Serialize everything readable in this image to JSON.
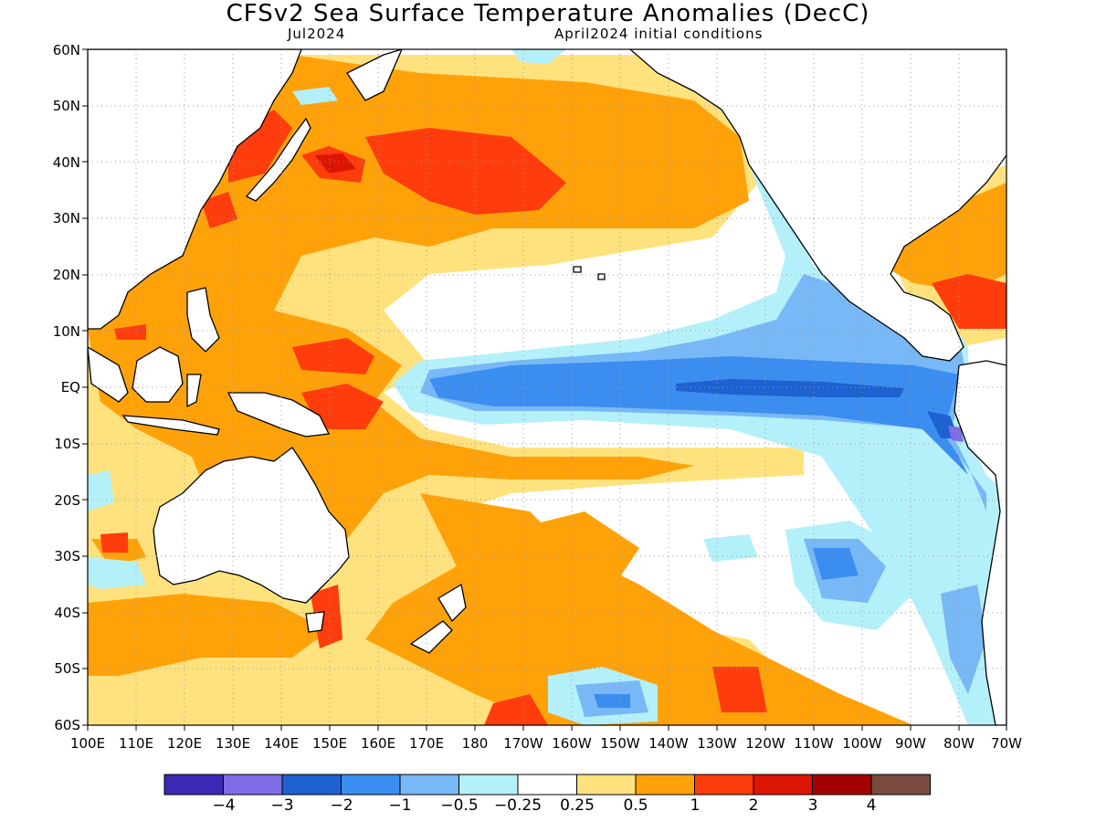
{
  "title": "CFSv2 Sea Surface Temperature Anomalies (DecC)",
  "subtitle_left": "Jul2024",
  "subtitle_right": "April2024 initial conditions",
  "lat_labels": [
    "60N",
    "50N",
    "40N",
    "30N",
    "20N",
    "10N",
    "EQ",
    "10S",
    "20S",
    "30S",
    "40S",
    "50S",
    "60S"
  ],
  "lon_labels": [
    "100E",
    "110E",
    "120E",
    "130E",
    "140E",
    "150E",
    "160E",
    "170E",
    "180",
    "170W",
    "160W",
    "150W",
    "140W",
    "130W",
    "120W",
    "110W",
    "100W",
    "90W",
    "80W",
    "70W"
  ],
  "colorbar": {
    "colors": [
      "#3b28b4",
      "#7f6ce6",
      "#1d62d0",
      "#3b8ef0",
      "#78b8f6",
      "#b4f0fa",
      "#ffffff",
      "#ffe27e",
      "#ffa20a",
      "#ff3c0c",
      "#dc1402",
      "#a40202",
      "#7a4a3e"
    ],
    "labels": [
      "−4",
      "−3",
      "−2",
      "−1",
      "−0.5",
      "−0.25",
      "0.25",
      "0.5",
      "1",
      "2",
      "3",
      "4"
    ]
  },
  "legend_colors": {
    "anom_pos_weak": "#ffe27e",
    "anom_pos_mod": "#ffa20a",
    "anom_pos_strong": "#ff3c0c",
    "anom_pos_vstrong": "#dc1402",
    "anom_pos_extreme": "#a40202",
    "anom_neg_weak": "#b4f0fa",
    "anom_neg_mod": "#78b8f6",
    "anom_neg_strong": "#3b8ef0",
    "anom_neg_vstrong": "#1d62d0",
    "anom_neg_extreme": "#7f6ce6"
  }
}
